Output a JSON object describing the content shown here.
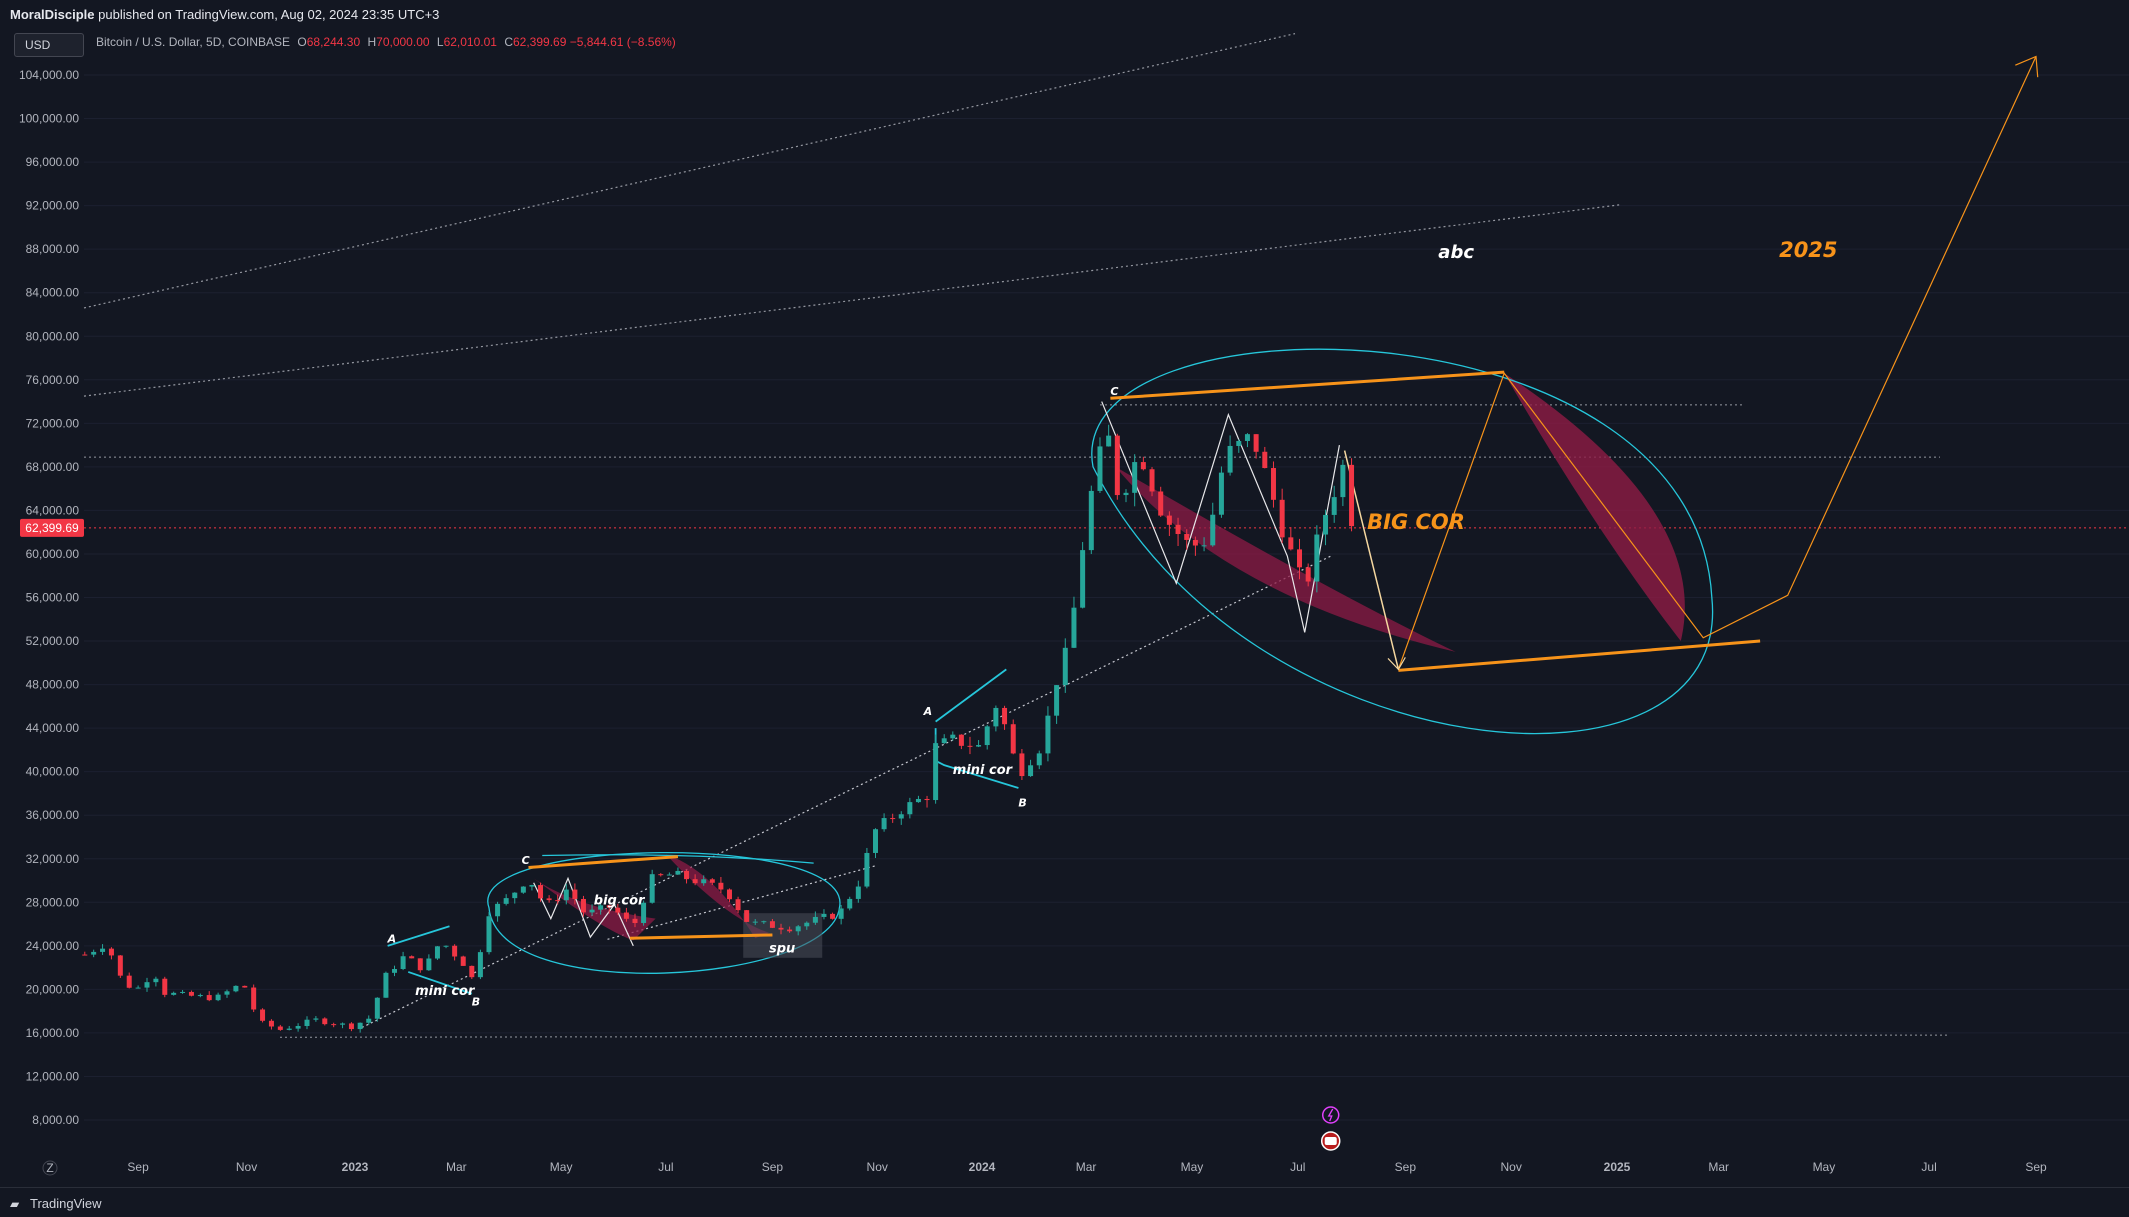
{
  "header": {
    "publisher": "MoralDisciple",
    "published_text": "published on TradingView.com, Aug 02, 2024 23:35 UTC+3"
  },
  "currency_button": "USD",
  "legend": {
    "symbol": "Bitcoin / U.S. Dollar, 5D, COINBASE",
    "open_label": "O",
    "open": "68,244.30",
    "high_label": "H",
    "high": "70,000.00",
    "low_label": "L",
    "low": "62,010.01",
    "close_label": "C",
    "close": "62,399.69",
    "change": "−5,844.61 (−8.56%)"
  },
  "footer": {
    "brand": "TradingView",
    "tz_marker": "Z"
  },
  "colors": {
    "background": "#131722",
    "up_candle": "#26a69a",
    "down_candle": "#f23645",
    "orange": "#f7931a",
    "cyan_outline": "#26c6da",
    "magenta_fill": "#8e1b45",
    "price_tag": "#f23645"
  },
  "chart_data": {
    "type": "candlestick",
    "title": "Bitcoin / U.S. Dollar, 5D, COINBASE",
    "y_ticks": [
      8000,
      12000,
      16000,
      20000,
      24000,
      28000,
      32000,
      36000,
      40000,
      44000,
      48000,
      52000,
      56000,
      60000,
      64000,
      68000,
      72000,
      76000,
      80000,
      84000,
      88000,
      92000,
      96000,
      100000,
      104000
    ],
    "y_tick_labels": [
      "8,000.00",
      "12,000.00",
      "16,000.00",
      "20,000.00",
      "24,000.00",
      "28,000.00",
      "32,000.00",
      "36,000.00",
      "40,000.00",
      "44,000.00",
      "48,000.00",
      "52,000.00",
      "56,000.00",
      "60,000.00",
      "64,000.00",
      "68,000.00",
      "72,000.00",
      "76,000.00",
      "80,000.00",
      "84,000.00",
      "88,000.00",
      "92,000.00",
      "96,000.00",
      "100,000.00",
      "104,000.00"
    ],
    "x_ticks": [
      "2022-09",
      "2022-11",
      "2023-01",
      "2023-03",
      "2023-05",
      "2023-07",
      "2023-09",
      "2023-11",
      "2024-01",
      "2024-03",
      "2024-05",
      "2024-07",
      "2024-09",
      "2024-11",
      "2025-01",
      "2025-03",
      "2025-05",
      "2025-07",
      "2025-09"
    ],
    "x_tick_labels": [
      "Sep",
      "Nov",
      "2023",
      "Mar",
      "May",
      "Jul",
      "Sep",
      "Nov",
      "2024",
      "Mar",
      "May",
      "Jul",
      "Sep",
      "Nov",
      "2025",
      "Mar",
      "May",
      "Jul",
      "Sep"
    ],
    "ylim": [
      4000,
      108000
    ],
    "current_price": 62399.69,
    "current_price_label": "62,399.69",
    "close_path": [
      [
        "2022-08-02",
        23200
      ],
      [
        "2022-08-15",
        24300
      ],
      [
        "2022-08-20",
        21500
      ],
      [
        "2022-08-30",
        19800
      ],
      [
        "2022-09-10",
        21600
      ],
      [
        "2022-09-15",
        19700
      ],
      [
        "2022-09-30",
        19400
      ],
      [
        "2022-10-15",
        19200
      ],
      [
        "2022-10-30",
        20600
      ],
      [
        "2022-11-08",
        17000
      ],
      [
        "2022-11-20",
        16300
      ],
      [
        "2022-12-10",
        17200
      ],
      [
        "2022-12-30",
        16600
      ],
      [
        "2023-01-10",
        17400
      ],
      [
        "2023-01-18",
        21100
      ],
      [
        "2023-01-30",
        23100
      ],
      [
        "2023-02-10",
        21800
      ],
      [
        "2023-02-20",
        24500
      ],
      [
        "2023-03-05",
        22400
      ],
      [
        "2023-03-12",
        20500
      ],
      [
        "2023-03-18",
        26900
      ],
      [
        "2023-03-30",
        28200
      ],
      [
        "2023-04-12",
        30300
      ],
      [
        "2023-04-22",
        27600
      ],
      [
        "2023-05-05",
        29300
      ],
      [
        "2023-05-15",
        26900
      ],
      [
        "2023-05-30",
        27600
      ],
      [
        "2023-06-12",
        25700
      ],
      [
        "2023-06-22",
        30100
      ],
      [
        "2023-07-05",
        30600
      ],
      [
        "2023-07-20",
        29900
      ],
      [
        "2023-08-05",
        29100
      ],
      [
        "2023-08-18",
        26100
      ],
      [
        "2023-08-30",
        25900
      ],
      [
        "2023-09-11",
        25700
      ],
      [
        "2023-09-25",
        26300
      ],
      [
        "2023-10-10",
        27000
      ],
      [
        "2023-10-22",
        30000
      ],
      [
        "2023-10-30",
        34500
      ],
      [
        "2023-11-15",
        36500
      ],
      [
        "2023-11-30",
        37800
      ],
      [
        "2023-12-05",
        42300
      ],
      [
        "2023-12-15",
        42900
      ],
      [
        "2023-12-30",
        42300
      ],
      [
        "2024-01-10",
        46500
      ],
      [
        "2024-01-22",
        39800
      ],
      [
        "2024-02-05",
        42600
      ],
      [
        "2024-02-12",
        48000
      ],
      [
        "2024-02-20",
        51500
      ],
      [
        "2024-02-28",
        60700
      ],
      [
        "2024-03-05",
        66500
      ],
      [
        "2024-03-13",
        71400
      ],
      [
        "2024-03-20",
        65000
      ],
      [
        "2024-04-01",
        69500
      ],
      [
        "2024-04-15",
        63400
      ],
      [
        "2024-04-30",
        60600
      ],
      [
        "2024-05-10",
        61400
      ],
      [
        "2024-05-20",
        69000
      ],
      [
        "2024-06-05",
        70800
      ],
      [
        "2024-06-15",
        66000
      ],
      [
        "2024-06-25",
        60900
      ],
      [
        "2024-07-05",
        56700
      ],
      [
        "2024-07-15",
        62900
      ],
      [
        "2024-07-27",
        68000
      ],
      [
        "2024-08-02",
        62399.69
      ]
    ],
    "annotations": {
      "label_mini_cor": "mini cor",
      "label_big_cor_small": "big cor",
      "label_spu": "spu",
      "label_BIG_COR": "BIG COR",
      "label_abc": "abc",
      "label_2025": "2025",
      "wave_A": "A",
      "wave_B": "B",
      "wave_C": "C"
    }
  }
}
